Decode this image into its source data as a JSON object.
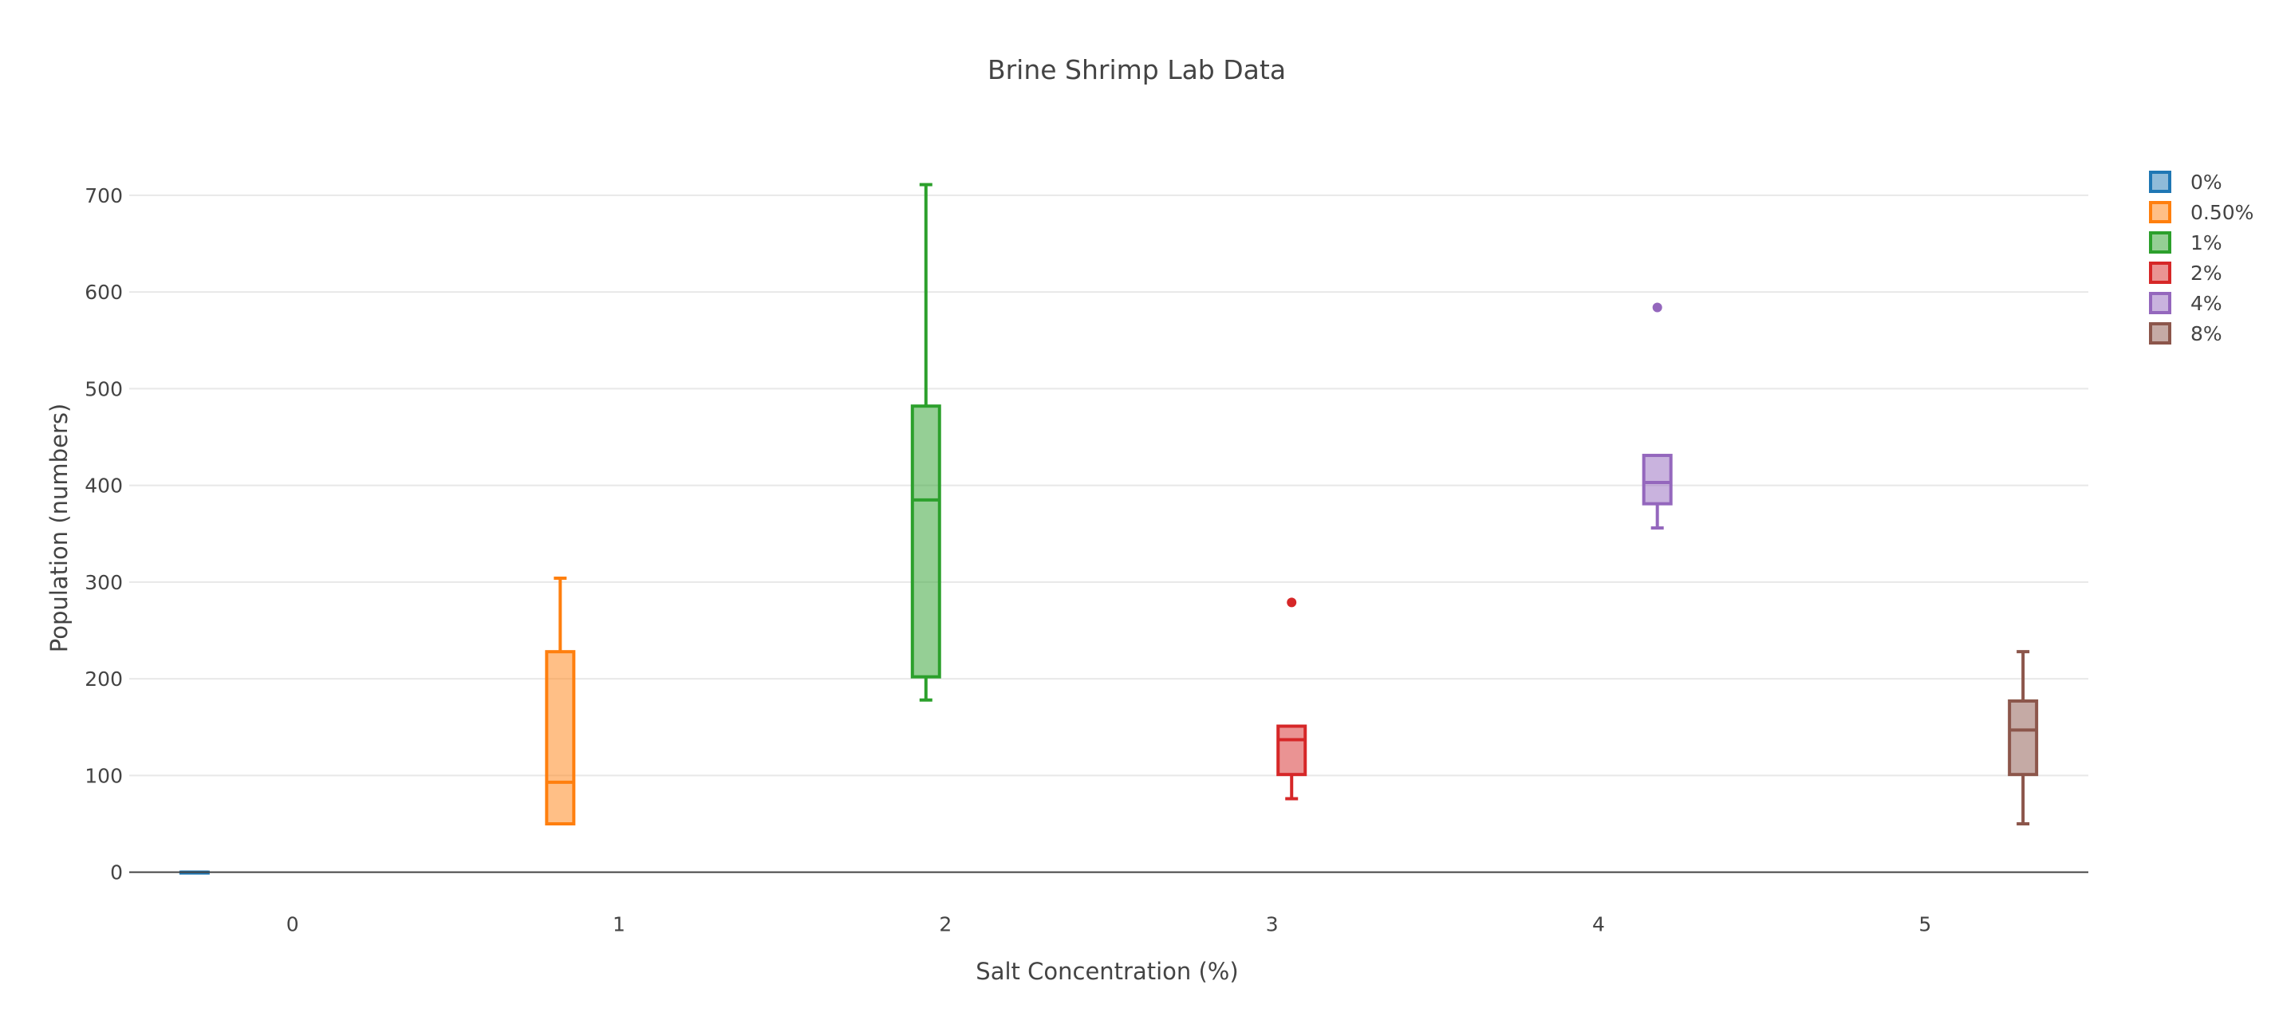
{
  "chart_data": {
    "type": "box",
    "title": "Brine Shrimp Lab Data",
    "xlabel": "Salt Concentration (%)",
    "ylabel": "Population (numbers)",
    "ylim": [
      -30,
      770
    ],
    "xlim": [
      -0.5,
      5.5
    ],
    "x_ticks": [
      0,
      1,
      2,
      3,
      4,
      5
    ],
    "y_ticks": [
      0,
      100,
      200,
      300,
      400,
      500,
      600,
      700
    ],
    "grid": true,
    "legend_position": "top-right",
    "series": [
      {
        "name": "0%",
        "color": "#1f77b4",
        "x": 0,
        "offset": -0.3,
        "min": 0,
        "q1": 0,
        "median": 0,
        "q3": 0,
        "max": 0,
        "outliers": []
      },
      {
        "name": "0.50%",
        "color": "#ff7f0e",
        "x": 1,
        "offset": -0.18,
        "min": 50,
        "q1": 50,
        "median": 93,
        "q3": 228,
        "max": 304,
        "outliers": []
      },
      {
        "name": "1%",
        "color": "#2ca02c",
        "x": 2,
        "offset": -0.06,
        "min": 178,
        "q1": 202,
        "median": 385,
        "q3": 482,
        "max": 711,
        "outliers": []
      },
      {
        "name": "2%",
        "color": "#d62728",
        "x": 3,
        "offset": 0.06,
        "min": 76,
        "q1": 101,
        "median": 137,
        "q3": 151,
        "max": 151,
        "outliers": [
          279
        ]
      },
      {
        "name": "4%",
        "color": "#9467bd",
        "x": 4,
        "offset": 0.18,
        "min": 356,
        "q1": 381,
        "median": 403,
        "q3": 431,
        "max": 431,
        "outliers": [
          584
        ]
      },
      {
        "name": "8%",
        "color": "#8c564b",
        "x": 5,
        "offset": 0.3,
        "min": 50,
        "q1": 101,
        "median": 147,
        "q3": 177,
        "max": 228,
        "outliers": []
      }
    ]
  }
}
